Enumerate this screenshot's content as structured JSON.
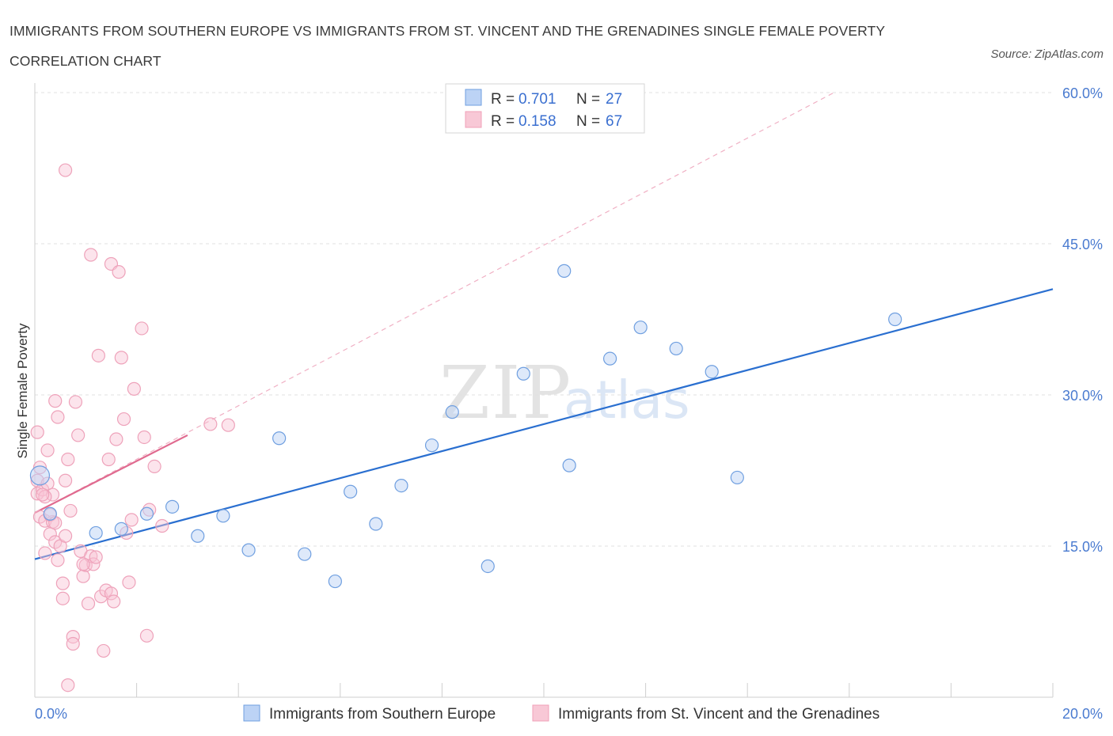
{
  "header": {
    "title": "IMMIGRANTS FROM SOUTHERN EUROPE VS IMMIGRANTS FROM ST. VINCENT AND THE GRENADINES SINGLE FEMALE POVERTY CORRELATION CHART",
    "source": "Source: ZipAtlas.com"
  },
  "watermark": {
    "zip": "ZIP",
    "atlas": "atlas"
  },
  "legend": {
    "r_label": "R =",
    "n_label": "N =",
    "series1": {
      "r": "0.701",
      "n": "27"
    },
    "series2": {
      "r": "0.158",
      "n": "67"
    }
  },
  "chart_data": {
    "type": "scatter",
    "title": "IMMIGRANTS FROM SOUTHERN EUROPE VS IMMIGRANTS FROM ST. VINCENT AND THE GRENADINES SINGLE FEMALE POVERTY CORRELATION CHART",
    "xlabel": "",
    "ylabel": "Single Female Poverty",
    "xlim": [
      0,
      20
    ],
    "ylim": [
      0,
      60
    ],
    "x_tick_labels": [
      "0.0%",
      "20.0%"
    ],
    "y_ticks": [
      15,
      30,
      45,
      60
    ],
    "y_tick_labels": [
      "15.0%",
      "30.0%",
      "45.0%",
      "60.0%"
    ],
    "grid": true,
    "legend_position": "top-center",
    "series": [
      {
        "name": "Immigrants from Southern Europe",
        "color": "#6f9fe0",
        "line_color": "#2a6fd0",
        "r": 0.701,
        "n": 27,
        "trend": {
          "x": [
            0.0,
            20.0
          ],
          "y": [
            13.7,
            40.5
          ]
        },
        "points": [
          [
            0.3,
            18.2
          ],
          [
            1.2,
            16.3
          ],
          [
            1.7,
            16.7
          ],
          [
            2.2,
            18.2
          ],
          [
            2.7,
            18.9
          ],
          [
            3.2,
            16.0
          ],
          [
            3.7,
            18.0
          ],
          [
            4.2,
            14.6
          ],
          [
            4.8,
            25.7
          ],
          [
            5.3,
            14.2
          ],
          [
            5.9,
            11.5
          ],
          [
            6.2,
            20.4
          ],
          [
            6.7,
            17.2
          ],
          [
            7.2,
            21.0
          ],
          [
            7.8,
            25.0
          ],
          [
            8.2,
            28.3
          ],
          [
            8.9,
            13.0
          ],
          [
            9.6,
            32.1
          ],
          [
            10.4,
            42.3
          ],
          [
            10.5,
            23.0
          ],
          [
            11.3,
            33.6
          ],
          [
            11.9,
            36.7
          ],
          [
            12.6,
            34.6
          ],
          [
            13.3,
            32.3
          ],
          [
            13.8,
            21.8
          ],
          [
            16.9,
            37.5
          ],
          [
            0.1,
            22.0
          ]
        ]
      },
      {
        "name": "Immigrants from St. Vincent and the Grenadines",
        "color": "#f0a0b8",
        "line_color": "#e06a8f",
        "r": 0.158,
        "n": 67,
        "trend": {
          "x": [
            0.0,
            3.0
          ],
          "y": [
            18.3,
            26.0
          ]
        },
        "trend_extended": {
          "x": [
            0.0,
            15.7
          ],
          "y": [
            18.3,
            60.0
          ]
        },
        "points": [
          [
            0.05,
            26.3
          ],
          [
            0.05,
            21.5
          ],
          [
            0.05,
            20.2
          ],
          [
            0.1,
            22.8
          ],
          [
            0.1,
            17.9
          ],
          [
            0.15,
            20.6
          ],
          [
            0.2,
            17.5
          ],
          [
            0.2,
            14.3
          ],
          [
            0.25,
            24.5
          ],
          [
            0.25,
            21.2
          ],
          [
            0.3,
            16.2
          ],
          [
            0.35,
            20.1
          ],
          [
            0.35,
            17.4
          ],
          [
            0.4,
            29.4
          ],
          [
            0.4,
            15.4
          ],
          [
            0.45,
            13.6
          ],
          [
            0.45,
            27.8
          ],
          [
            0.5,
            15.0
          ],
          [
            0.55,
            11.3
          ],
          [
            0.55,
            9.8
          ],
          [
            0.6,
            16.0
          ],
          [
            0.6,
            21.5
          ],
          [
            0.65,
            23.6
          ],
          [
            0.7,
            18.5
          ],
          [
            0.75,
            6.0
          ],
          [
            0.75,
            5.3
          ],
          [
            0.8,
            29.3
          ],
          [
            0.85,
            26.0
          ],
          [
            0.9,
            14.5
          ],
          [
            0.95,
            12.0
          ],
          [
            1.0,
            13.1
          ],
          [
            1.05,
            9.3
          ],
          [
            1.1,
            14.0
          ],
          [
            1.15,
            13.2
          ],
          [
            1.25,
            33.9
          ],
          [
            1.3,
            10.0
          ],
          [
            1.35,
            4.6
          ],
          [
            1.4,
            10.6
          ],
          [
            1.45,
            23.6
          ],
          [
            1.5,
            10.3
          ],
          [
            1.55,
            9.5
          ],
          [
            1.6,
            25.6
          ],
          [
            1.7,
            33.7
          ],
          [
            1.75,
            27.6
          ],
          [
            1.8,
            16.3
          ],
          [
            1.85,
            11.4
          ],
          [
            1.9,
            17.6
          ],
          [
            1.95,
            30.6
          ],
          [
            2.1,
            36.6
          ],
          [
            2.15,
            25.8
          ],
          [
            2.2,
            6.1
          ],
          [
            2.25,
            18.6
          ],
          [
            2.35,
            22.9
          ],
          [
            2.5,
            17.0
          ],
          [
            0.6,
            52.3
          ],
          [
            1.1,
            43.9
          ],
          [
            1.5,
            43.0
          ],
          [
            1.65,
            42.2
          ],
          [
            3.45,
            27.1
          ],
          [
            3.8,
            27.0
          ],
          [
            1.2,
            13.9
          ],
          [
            0.95,
            13.2
          ],
          [
            0.3,
            18.1
          ],
          [
            0.2,
            19.9
          ],
          [
            0.4,
            17.3
          ],
          [
            0.65,
            1.2
          ],
          [
            0.15,
            20.1
          ]
        ]
      }
    ]
  }
}
